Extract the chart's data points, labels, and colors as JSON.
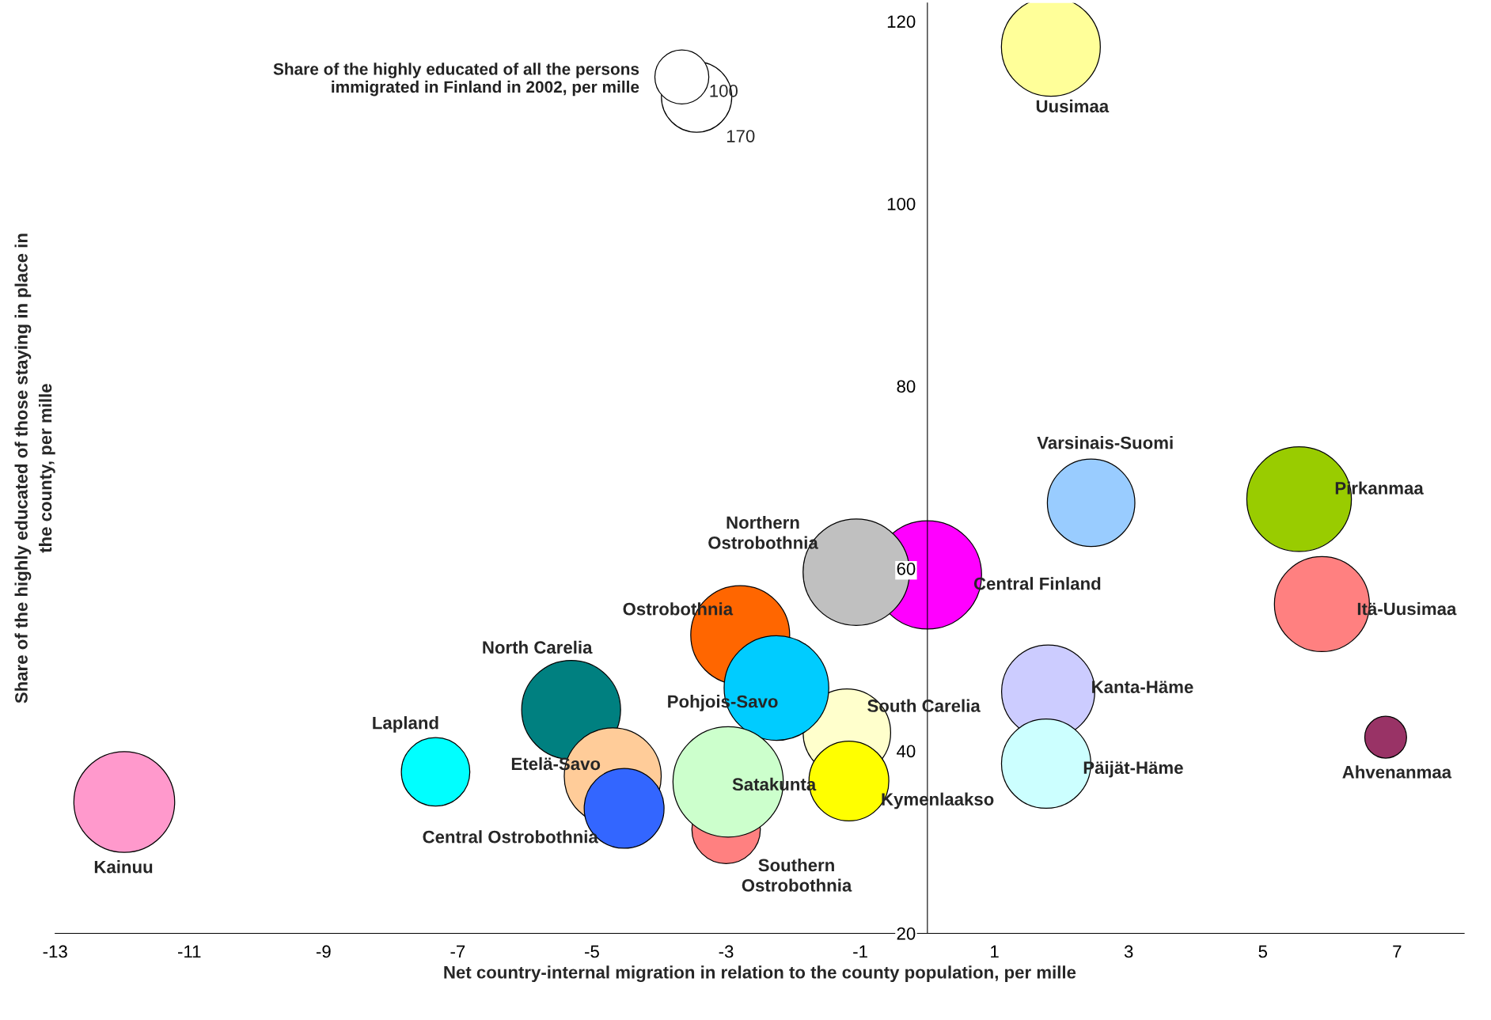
{
  "chart_data": {
    "type": "bubble",
    "xlabel": "Net country-internal migration in relation to the county population, per mille",
    "ylabel": "Share of the highly educated of those staying in place in\nthe county, per mille",
    "legend_title": "Share of the highly educated of all the persons\n immigrated in Finland in 2002, per mille",
    "size_legend": [
      100,
      170
    ],
    "xlim": [
      -13,
      8
    ],
    "ylim": [
      20,
      122
    ],
    "xticks": [
      -13,
      -11,
      -9,
      -7,
      -5,
      -3,
      -1,
      1,
      3,
      5,
      7
    ],
    "yticks": [
      20,
      40,
      60,
      80,
      100,
      120
    ],
    "grid": false,
    "series": [
      {
        "name": "Uusimaa",
        "color": "#ffff99",
        "x": [
          1.84
        ],
        "values": [
          117.2
        ],
        "sizes": [
          336
        ]
      },
      {
        "name": "Varsinais-Suomi",
        "color": "#99ccff",
        "x": [
          2.44
        ],
        "values": [
          67.2
        ],
        "sizes": [
          263
        ]
      },
      {
        "name": "Pirkanmaa",
        "color": "#99cc00",
        "x": [
          5.54
        ],
        "values": [
          67.6
        ],
        "sizes": [
          376
        ]
      },
      {
        "name": "Itä-Uusimaa",
        "color": "#ff8080",
        "x": [
          5.88
        ],
        "values": [
          56.1
        ],
        "sizes": [
          310
        ]
      },
      {
        "name": "Ahvenanmaa",
        "color": "#993366",
        "x": [
          6.83
        ],
        "values": [
          41.5
        ],
        "sizes": [
          60
        ]
      },
      {
        "name": "Central Finland",
        "color": "#ff00ff",
        "x": [
          0.0
        ],
        "values": [
          59.3
        ],
        "sizes": [
          403
        ]
      },
      {
        "name": "Northern\nOstrobothnia",
        "color": "#c0c0c0",
        "x": [
          -1.06
        ],
        "values": [
          59.6
        ],
        "sizes": [
          389
        ]
      },
      {
        "name": "Kanta-Häme",
        "color": "#ccccff",
        "x": [
          1.8
        ],
        "values": [
          46.5
        ],
        "sizes": [
          298
        ]
      },
      {
        "name": "Päijät-Häme",
        "color": "#ccffff",
        "x": [
          1.77
        ],
        "values": [
          38.6
        ],
        "sizes": [
          274
        ]
      },
      {
        "name": "South Carelia",
        "color": "#ffffcc",
        "x": [
          -1.2
        ],
        "values": [
          42.0
        ],
        "sizes": [
          263
        ]
      },
      {
        "name": "Kymenlaakso",
        "color": "#ffff00",
        "x": [
          -1.17
        ],
        "values": [
          36.7
        ],
        "sizes": [
          219
        ]
      },
      {
        "name": "Ostrobothnia",
        "color": "#ff6600",
        "x": [
          -2.79
        ],
        "values": [
          52.7
        ],
        "sizes": [
          336
        ]
      },
      {
        "name": "Pohjois-Savo",
        "color": "#00ccff",
        "x": [
          -2.25
        ],
        "values": [
          46.9
        ],
        "sizes": [
          376
        ]
      },
      {
        "name": "Southern\nOstrobothnia",
        "color": "#ff8080",
        "x": [
          -3.0
        ],
        "values": [
          31.4
        ],
        "sizes": [
          161
        ]
      },
      {
        "name": "Satakunta",
        "color": "#ccffcc",
        "x": [
          -2.97
        ],
        "values": [
          36.6
        ],
        "sizes": [
          418
        ]
      },
      {
        "name": "North Carelia",
        "color": "#008080",
        "x": [
          -5.31
        ],
        "values": [
          44.5
        ],
        "sizes": [
          336
        ]
      },
      {
        "name": "Etelä-Savo",
        "color": "#ffcc99",
        "x": [
          -4.69
        ],
        "values": [
          37.2
        ],
        "sizes": [
          323
        ]
      },
      {
        "name": "Central Ostrobothnia",
        "color": "#3366ff",
        "x": [
          -4.52
        ],
        "values": [
          33.7
        ],
        "sizes": [
          219
        ]
      },
      {
        "name": "Lapland",
        "color": "#00ffff",
        "x": [
          -7.33
        ],
        "values": [
          37.7
        ],
        "sizes": [
          161
        ]
      },
      {
        "name": "Kainuu",
        "color": "#ff99cc",
        "x": [
          -11.97
        ],
        "values": [
          34.4
        ],
        "sizes": [
          349
        ]
      }
    ]
  }
}
